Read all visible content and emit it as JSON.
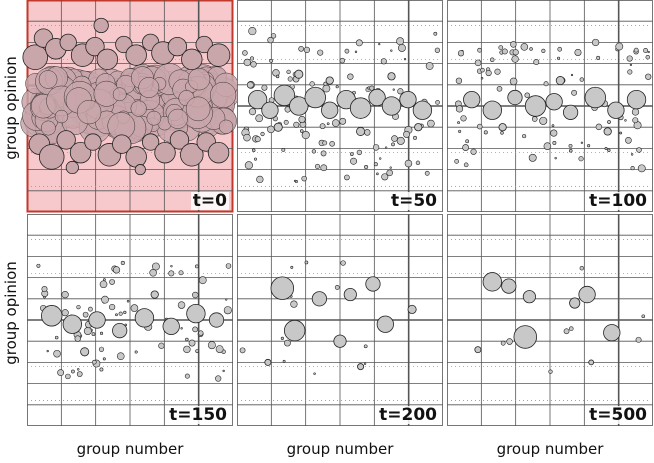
{
  "figure": {
    "ylabel": "group opinion",
    "xlabel": "group number"
  },
  "chart_data": [
    {
      "type": "scatter",
      "time_label": "t=0",
      "highlighted": true,
      "highlight_color": "#f8c9cc",
      "highlight_border": "#c0392b",
      "bubble_color": "#c9a6aa",
      "dense_band": true,
      "bubbles": [
        [
          0.04,
          0.27,
          0.06
        ],
        [
          0.08,
          0.18,
          0.045
        ],
        [
          0.14,
          0.23,
          0.05
        ],
        [
          0.2,
          0.2,
          0.04
        ],
        [
          0.27,
          0.26,
          0.055
        ],
        [
          0.33,
          0.22,
          0.045
        ],
        [
          0.39,
          0.28,
          0.05
        ],
        [
          0.47,
          0.21,
          0.04
        ],
        [
          0.53,
          0.26,
          0.05
        ],
        [
          0.6,
          0.2,
          0.04
        ],
        [
          0.66,
          0.25,
          0.055
        ],
        [
          0.73,
          0.22,
          0.045
        ],
        [
          0.8,
          0.28,
          0.05
        ],
        [
          0.86,
          0.21,
          0.04
        ],
        [
          0.93,
          0.26,
          0.055
        ],
        [
          0.36,
          0.12,
          0.035
        ],
        [
          0.06,
          0.68,
          0.05
        ],
        [
          0.12,
          0.74,
          0.06
        ],
        [
          0.19,
          0.66,
          0.045
        ],
        [
          0.26,
          0.72,
          0.05
        ],
        [
          0.32,
          0.67,
          0.04
        ],
        [
          0.4,
          0.73,
          0.055
        ],
        [
          0.46,
          0.68,
          0.045
        ],
        [
          0.53,
          0.74,
          0.05
        ],
        [
          0.6,
          0.67,
          0.04
        ],
        [
          0.67,
          0.72,
          0.05
        ],
        [
          0.74,
          0.66,
          0.045
        ],
        [
          0.8,
          0.73,
          0.055
        ],
        [
          0.87,
          0.67,
          0.045
        ],
        [
          0.93,
          0.72,
          0.05
        ],
        [
          0.22,
          0.79,
          0.03
        ],
        [
          0.55,
          0.8,
          0.025
        ]
      ]
    },
    {
      "type": "scatter",
      "time_label": "t=50",
      "highlighted": false,
      "bubble_color": "#c8c8c8",
      "bubbles": [
        [
          0.1,
          0.47,
          0.045
        ],
        [
          0.16,
          0.52,
          0.04
        ],
        [
          0.23,
          0.45,
          0.05
        ],
        [
          0.3,
          0.5,
          0.045
        ],
        [
          0.38,
          0.46,
          0.05
        ],
        [
          0.45,
          0.52,
          0.04
        ],
        [
          0.53,
          0.47,
          0.045
        ],
        [
          0.6,
          0.51,
          0.05
        ],
        [
          0.68,
          0.46,
          0.04
        ],
        [
          0.75,
          0.5,
          0.045
        ],
        [
          0.83,
          0.47,
          0.04
        ],
        [
          0.9,
          0.52,
          0.045
        ],
        [
          0.2,
          0.6,
          0.02
        ],
        [
          0.3,
          0.35,
          0.02
        ],
        [
          0.45,
          0.38,
          0.018
        ],
        [
          0.6,
          0.62,
          0.02
        ],
        [
          0.75,
          0.36,
          0.018
        ],
        [
          0.88,
          0.6,
          0.018
        ]
      ],
      "scatter_seed": 11,
      "scatter_count": 130,
      "scatter_spread": 0.36
    },
    {
      "type": "scatter",
      "time_label": "t=100",
      "highlighted": false,
      "bubble_color": "#c8c8c8",
      "bubbles": [
        [
          0.12,
          0.47,
          0.04
        ],
        [
          0.22,
          0.52,
          0.045
        ],
        [
          0.33,
          0.46,
          0.035
        ],
        [
          0.43,
          0.5,
          0.05
        ],
        [
          0.52,
          0.48,
          0.04
        ],
        [
          0.6,
          0.53,
          0.035
        ],
        [
          0.72,
          0.46,
          0.05
        ],
        [
          0.82,
          0.52,
          0.04
        ],
        [
          0.92,
          0.47,
          0.045
        ],
        [
          0.27,
          0.6,
          0.018
        ],
        [
          0.55,
          0.38,
          0.02
        ],
        [
          0.78,
          0.62,
          0.018
        ]
      ],
      "scatter_seed": 23,
      "scatter_count": 95,
      "scatter_spread": 0.3
    },
    {
      "type": "scatter",
      "time_label": "t=150",
      "highlighted": false,
      "bubble_color": "#c8c8c8",
      "bubbles": [
        [
          0.12,
          0.48,
          0.05
        ],
        [
          0.22,
          0.52,
          0.045
        ],
        [
          0.34,
          0.5,
          0.04
        ],
        [
          0.45,
          0.55,
          0.035
        ],
        [
          0.57,
          0.49,
          0.045
        ],
        [
          0.7,
          0.53,
          0.04
        ],
        [
          0.82,
          0.47,
          0.045
        ],
        [
          0.92,
          0.5,
          0.035
        ],
        [
          0.28,
          0.65,
          0.02
        ],
        [
          0.62,
          0.38,
          0.018
        ]
      ],
      "scatter_seed": 37,
      "scatter_count": 85,
      "scatter_spread": 0.28
    },
    {
      "type": "scatter",
      "time_label": "t=200",
      "highlighted": false,
      "bubble_color": "#c8c8c8",
      "bubbles": [
        [
          0.22,
          0.35,
          0.055
        ],
        [
          0.4,
          0.4,
          0.035
        ],
        [
          0.55,
          0.38,
          0.03
        ],
        [
          0.28,
          0.55,
          0.05
        ],
        [
          0.72,
          0.52,
          0.04
        ],
        [
          0.66,
          0.33,
          0.035
        ],
        [
          0.5,
          0.6,
          0.03
        ],
        [
          0.85,
          0.45,
          0.02
        ],
        [
          0.15,
          0.7,
          0.015
        ],
        [
          0.6,
          0.72,
          0.015
        ]
      ],
      "scatter_seed": 53,
      "scatter_count": 15,
      "scatter_spread": 0.3
    },
    {
      "type": "scatter",
      "time_label": "t=500",
      "highlighted": false,
      "bubble_color": "#c8c8c8",
      "bubbles": [
        [
          0.22,
          0.32,
          0.045
        ],
        [
          0.3,
          0.34,
          0.035
        ],
        [
          0.4,
          0.39,
          0.03
        ],
        [
          0.68,
          0.38,
          0.04
        ],
        [
          0.62,
          0.42,
          0.025
        ],
        [
          0.38,
          0.58,
          0.055
        ],
        [
          0.8,
          0.56,
          0.04
        ],
        [
          0.15,
          0.64,
          0.015
        ],
        [
          0.7,
          0.7,
          0.012
        ]
      ],
      "scatter_seed": 71,
      "scatter_count": 8,
      "scatter_spread": 0.25
    }
  ]
}
